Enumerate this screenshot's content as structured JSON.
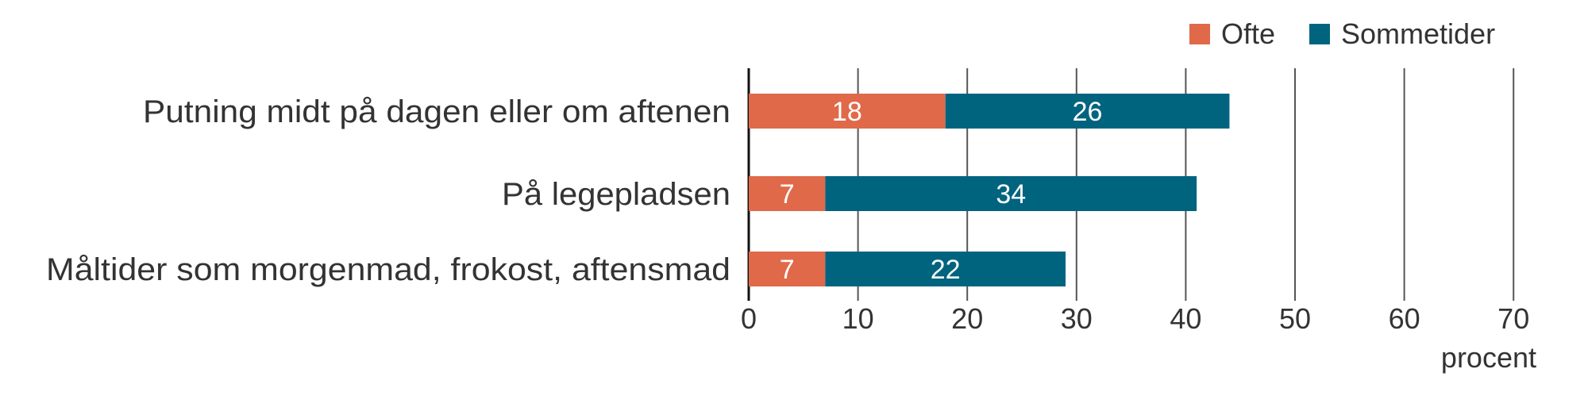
{
  "chart_data": {
    "type": "bar",
    "orientation": "horizontal",
    "stacked": true,
    "categories": [
      "Putning midt på dagen eller om aftenen",
      "På legepladsen",
      "Måltider som morgenmad, frokost, aftensmad"
    ],
    "series": [
      {
        "name": "Ofte",
        "color": "#E0694A",
        "values": [
          18,
          7,
          7
        ]
      },
      {
        "name": "Sommetider",
        "color": "#00647F",
        "values": [
          26,
          34,
          22
        ]
      }
    ],
    "xlabel": "procent",
    "ylabel": "",
    "xlim": [
      0,
      70
    ],
    "xticks": [
      "0",
      "10",
      "20",
      "30",
      "40",
      "50",
      "60",
      "70"
    ],
    "grid": "vertical",
    "legend": "top-right",
    "data_labels": true
  }
}
